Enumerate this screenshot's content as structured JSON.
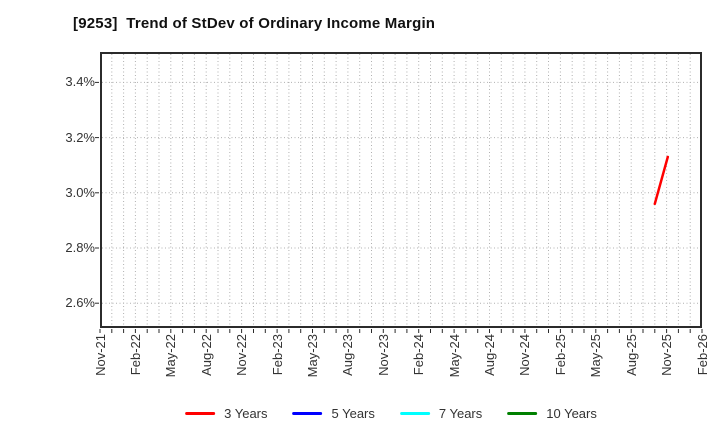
{
  "header": {
    "title": "[9253]  Trend of StDev of Ordinary Income Margin"
  },
  "chart_data": {
    "type": "line",
    "title": "[9253]  Trend of StDev of Ordinary Income Margin",
    "xlabel": "",
    "ylabel": "",
    "x_tick_labels": [
      "Nov-21",
      "Feb-22",
      "May-22",
      "Aug-22",
      "Nov-22",
      "Feb-23",
      "May-23",
      "Aug-23",
      "Nov-23",
      "Feb-24",
      "May-24",
      "Aug-24",
      "Nov-24",
      "Feb-25",
      "May-25",
      "Aug-25",
      "Nov-25",
      "Feb-26"
    ],
    "months_between_labels": 3,
    "xlim_months": [
      0,
      51
    ],
    "ylim": [
      2.51,
      3.51
    ],
    "y_ticks": [
      {
        "value": 3.4,
        "label": "3.4%"
      },
      {
        "value": 3.2,
        "label": "3.2%"
      },
      {
        "value": 3.0,
        "label": "3.0%"
      },
      {
        "value": 2.8,
        "label": "2.8%"
      },
      {
        "value": 2.6,
        "label": "2.6%"
      }
    ],
    "grid": {
      "style": "dotted",
      "color": "#b0b0b0",
      "vertical_every_months": 1,
      "horizontal_at_y_ticks": true
    },
    "axis_color": "#2b2b2b",
    "series": [
      {
        "name": "3 Years",
        "color": "#ff0000",
        "points": [
          {
            "date": "Oct-25",
            "month": 47.0,
            "value": 2.96
          },
          {
            "date": "Nov-25",
            "month": 48.1,
            "value": 3.13
          }
        ]
      },
      {
        "name": "5 Years",
        "color": "#0000ff",
        "points": []
      },
      {
        "name": "7 Years",
        "color": "#00ffff",
        "points": []
      },
      {
        "name": "10 Years",
        "color": "#008000",
        "points": []
      }
    ],
    "legend": {
      "position": "bottom",
      "labels": [
        "3 Years",
        "5 Years",
        "7 Years",
        "10 Years"
      ]
    }
  }
}
